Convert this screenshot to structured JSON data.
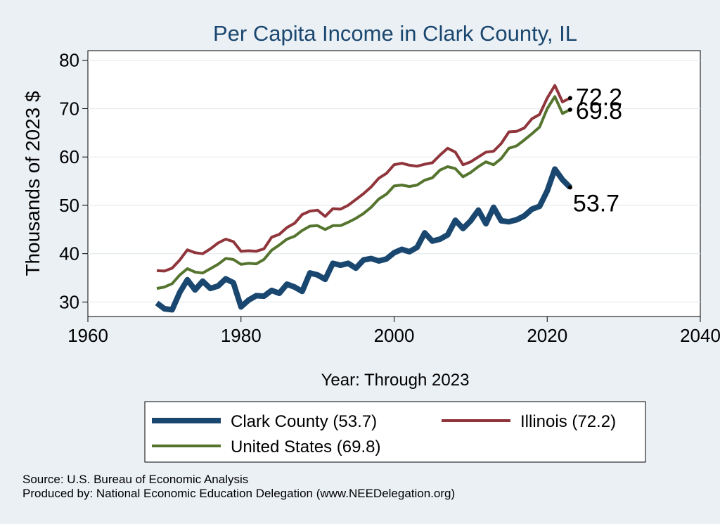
{
  "chart_data": {
    "type": "line",
    "title": "Per Capita Income in Clark County, IL",
    "xlabel": "Year: Through 2023",
    "ylabel": "Thousands of 2023 $",
    "xlim": [
      1960,
      2040
    ],
    "ylim": [
      27,
      82
    ],
    "xticks": [
      1960,
      1980,
      2000,
      2020,
      2040
    ],
    "yticks": [
      30,
      40,
      50,
      60,
      70,
      80
    ],
    "grid": "horizontal",
    "legend_position": "bottom",
    "x": [
      1969,
      1970,
      1971,
      1972,
      1973,
      1974,
      1975,
      1976,
      1977,
      1978,
      1979,
      1980,
      1981,
      1982,
      1983,
      1984,
      1985,
      1986,
      1987,
      1988,
      1989,
      1990,
      1991,
      1992,
      1993,
      1994,
      1995,
      1996,
      1997,
      1998,
      1999,
      2000,
      2001,
      2002,
      2003,
      2004,
      2005,
      2006,
      2007,
      2008,
      2009,
      2010,
      2011,
      2012,
      2013,
      2014,
      2015,
      2016,
      2017,
      2018,
      2019,
      2020,
      2021,
      2022,
      2023
    ],
    "series": [
      {
        "name": "Clark County",
        "legend_label": "Clark County (53.7)",
        "end_label": "53.7",
        "color": "#1a476f",
        "values": [
          29.8,
          28.6,
          28.4,
          32.0,
          34.6,
          32.5,
          34.3,
          32.8,
          33.3,
          34.8,
          34.0,
          29.0,
          30.4,
          31.3,
          31.2,
          32.4,
          31.8,
          33.7,
          33.1,
          32.2,
          36.0,
          35.6,
          34.7,
          38.0,
          37.6,
          38.0,
          37.0,
          38.7,
          39.0,
          38.5,
          38.9,
          40.2,
          40.9,
          40.4,
          41.3,
          44.3,
          42.6,
          43.0,
          43.9,
          46.9,
          45.2,
          46.8,
          49.0,
          46.2,
          49.6,
          46.8,
          46.6,
          47.0,
          47.8,
          49.2,
          49.8,
          53.0,
          57.5,
          55.3,
          53.7
        ]
      },
      {
        "name": "Illinois",
        "legend_label": "Illinois (72.2)",
        "end_label": "72.2",
        "color": "#90353b",
        "values": [
          36.5,
          36.4,
          37.0,
          38.7,
          40.8,
          40.2,
          40.0,
          41.0,
          42.2,
          43.0,
          42.5,
          40.5,
          40.6,
          40.5,
          41.0,
          43.4,
          44.0,
          45.4,
          46.3,
          48.1,
          48.8,
          49.0,
          47.7,
          49.3,
          49.2,
          50.0,
          51.2,
          52.4,
          53.8,
          55.6,
          56.6,
          58.4,
          58.7,
          58.3,
          58.1,
          58.5,
          58.8,
          60.4,
          61.8,
          61.0,
          58.4,
          59.0,
          60.0,
          61.0,
          61.2,
          62.8,
          65.2,
          65.3,
          66.0,
          67.9,
          68.8,
          72.2,
          74.8,
          71.4,
          72.2
        ]
      },
      {
        "name": "United States",
        "legend_label": "United States (69.8)",
        "end_label": "69.8",
        "color": "#55752f",
        "values": [
          32.8,
          33.1,
          33.8,
          35.6,
          36.9,
          36.2,
          36.0,
          36.9,
          37.8,
          39.0,
          38.8,
          37.8,
          38.0,
          37.9,
          38.8,
          40.7,
          41.8,
          43.0,
          43.6,
          44.8,
          45.7,
          45.8,
          45.0,
          45.8,
          45.8,
          46.5,
          47.3,
          48.3,
          49.6,
          51.3,
          52.3,
          54.0,
          54.2,
          53.9,
          54.2,
          55.2,
          55.7,
          57.3,
          58.0,
          57.6,
          55.9,
          56.8,
          58.0,
          59.0,
          58.4,
          59.7,
          61.8,
          62.3,
          63.5,
          64.8,
          66.2,
          70.0,
          72.5,
          69.0,
          69.8
        ]
      }
    ]
  },
  "footnotes": {
    "source": "Source: U.S. Bureau of Economic Analysis",
    "produced_by": "Produced by: National Economic Education Delegation (www.NEEDelegation.org)"
  }
}
